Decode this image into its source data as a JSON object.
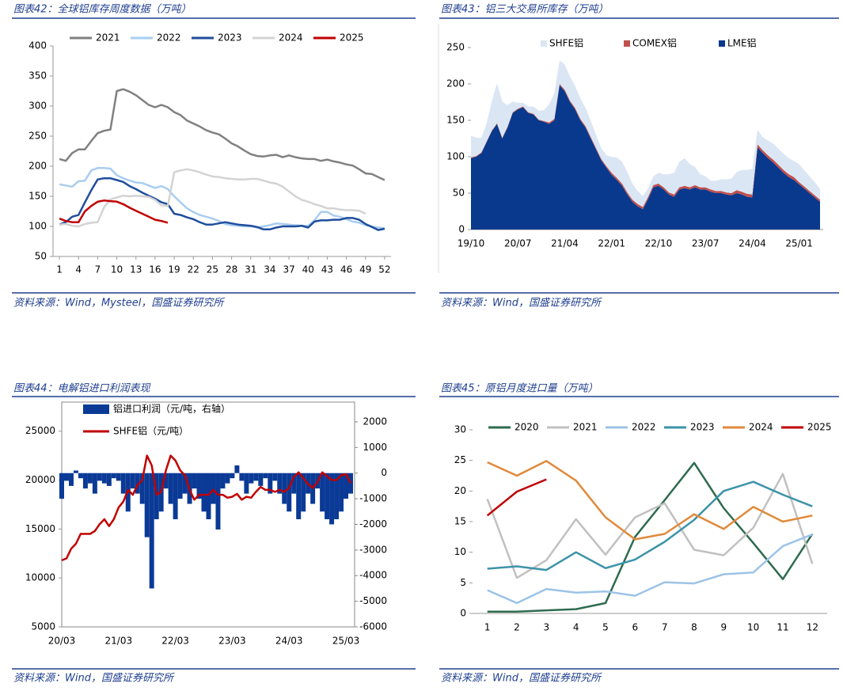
{
  "chart_data": [
    {
      "type": "line",
      "title": "图表42：全球铝库存周度数据（万吨）",
      "source": "资料来源：Wind，Mysteel，国盛证券研究所",
      "x": [
        1,
        2,
        3,
        4,
        5,
        6,
        7,
        8,
        9,
        10,
        11,
        12,
        13,
        14,
        15,
        16,
        17,
        18,
        19,
        20,
        21,
        22,
        23,
        24,
        25,
        26,
        27,
        28,
        29,
        30,
        31,
        32,
        33,
        34,
        35,
        36,
        37,
        38,
        39,
        40,
        41,
        42,
        43,
        44,
        45,
        46,
        47,
        48,
        49,
        50,
        51,
        52
      ],
      "xlim": [
        0,
        53
      ],
      "xticks": [
        1,
        4,
        7,
        10,
        13,
        16,
        19,
        22,
        25,
        28,
        31,
        34,
        37,
        40,
        43,
        46,
        49,
        52
      ],
      "ylim": [
        50,
        400
      ],
      "yticks": [
        50,
        100,
        150,
        200,
        250,
        300,
        350,
        400
      ],
      "legend": "top",
      "series": [
        {
          "name": "2021",
          "color": "#808080",
          "values": [
            212,
            209,
            222,
            228,
            228,
            242,
            255,
            259,
            261,
            325,
            328,
            324,
            318,
            310,
            302,
            298,
            302,
            298,
            290,
            285,
            276,
            271,
            266,
            260,
            256,
            253,
            246,
            238,
            233,
            226,
            220,
            217,
            216,
            218,
            219,
            215,
            218,
            215,
            213,
            212,
            212,
            209,
            211,
            208,
            206,
            203,
            201,
            195,
            188,
            187,
            182,
            177
          ]
        },
        {
          "name": "2022",
          "color": "#a9cdf0",
          "values": [
            170,
            168,
            166,
            175,
            176,
            193,
            197,
            197,
            196,
            185,
            180,
            176,
            173,
            172,
            168,
            164,
            167,
            162,
            150,
            140,
            130,
            124,
            119,
            116,
            113,
            109,
            104,
            102,
            101,
            100,
            100,
            98,
            100,
            102,
            105,
            104,
            103,
            102,
            101,
            101,
            110,
            124,
            124,
            118,
            116,
            112,
            108,
            106,
            102,
            100,
            98,
            97
          ]
        },
        {
          "name": "2023",
          "color": "#1f4e9c",
          "values": [
            103,
            107,
            116,
            119,
            140,
            160,
            178,
            180,
            180,
            177,
            174,
            167,
            162,
            156,
            151,
            146,
            140,
            137,
            121,
            119,
            115,
            112,
            107,
            103,
            103,
            105,
            107,
            105,
            103,
            102,
            101,
            99,
            95,
            95,
            98,
            100,
            100,
            100,
            101,
            98,
            108,
            110,
            110,
            111,
            111,
            114,
            114,
            111,
            104,
            99,
            94,
            96
          ]
        },
        {
          "name": "2024",
          "color": "#d3d3d3",
          "values": [
            103,
            104,
            101,
            100,
            104,
            106,
            107,
            132,
            145,
            148,
            151,
            150,
            151,
            150,
            149,
            144,
            135,
            134,
            190,
            193,
            195,
            193,
            190,
            186,
            183,
            182,
            180,
            179,
            178,
            178,
            179,
            179,
            176,
            173,
            171,
            166,
            158,
            150,
            144,
            141,
            137,
            134,
            130,
            130,
            128,
            127,
            127,
            126,
            121,
            null,
            null,
            null
          ]
        },
        {
          "name": "2025",
          "color": "#c00000",
          "values": [
            113,
            109,
            107,
            107,
            125,
            134,
            141,
            143,
            142,
            141,
            137,
            131,
            126,
            121,
            116,
            111,
            109,
            106,
            null,
            null,
            null,
            null,
            null,
            null,
            null,
            null,
            null,
            null,
            null,
            null,
            null,
            null,
            null,
            null,
            null,
            null,
            null,
            null,
            null,
            null,
            null,
            null,
            null,
            null,
            null,
            null,
            null,
            null,
            null,
            null,
            null,
            null
          ]
        }
      ]
    },
    {
      "type": "area",
      "title": "图表43：铝三大交易所库存（万吨）",
      "source": "资料来源：Wind，国盛证券研究所",
      "categories": [
        "19/10",
        null,
        null,
        null,
        null,
        null,
        null,
        null,
        null,
        "20/07",
        null,
        null,
        null,
        null,
        null,
        null,
        null,
        null,
        "21/04",
        null,
        null,
        null,
        null,
        null,
        null,
        null,
        null,
        "22/01",
        null,
        null,
        null,
        null,
        null,
        null,
        null,
        null,
        "22/10",
        null,
        null,
        null,
        null,
        null,
        null,
        null,
        null,
        "23/07",
        null,
        null,
        null,
        null,
        null,
        null,
        null,
        null,
        "24/04",
        null,
        null,
        null,
        null,
        null,
        null,
        null,
        null,
        "25/01",
        null,
        null,
        null,
        null
      ],
      "ylim": [
        0,
        250
      ],
      "yticks": [
        0,
        50,
        100,
        150,
        200,
        250
      ],
      "legend": "top",
      "stacked": true,
      "series": [
        {
          "name": "SHFE铝",
          "color": "#dbe6f4",
          "values": [
            30,
            25,
            20,
            25,
            40,
            55,
            50,
            30,
            15,
            8,
            5,
            8,
            10,
            12,
            15,
            25,
            35,
            32,
            35,
            33,
            30,
            28,
            25,
            22,
            18,
            15,
            15,
            22,
            28,
            30,
            28,
            22,
            18,
            15,
            12,
            12,
            15,
            18,
            25,
            30,
            35,
            38,
            32,
            25,
            18,
            15,
            12,
            14,
            16,
            18,
            20,
            25,
            30,
            33,
            35,
            20,
            18,
            20,
            22,
            22,
            22,
            22,
            22,
            25,
            22,
            20,
            18,
            15
          ]
        },
        {
          "name": "COMEX铝",
          "color": "#c0504d",
          "values": [
            1,
            1,
            1,
            1,
            1,
            1,
            1,
            1,
            1,
            1,
            1,
            1,
            1,
            1,
            1,
            2,
            2,
            2,
            2,
            2,
            2,
            2,
            2,
            2,
            2,
            2,
            2,
            3,
            3,
            3,
            3,
            3,
            3,
            3,
            3,
            3,
            3,
            3,
            3,
            3,
            3,
            3,
            3,
            3,
            3,
            3,
            3,
            3,
            3,
            3,
            3,
            4,
            4,
            4,
            4,
            4,
            4,
            4,
            4,
            4,
            4,
            4,
            4,
            3,
            3,
            3,
            3,
            3
          ]
        },
        {
          "name": "LME铝",
          "color": "#08398c",
          "values": [
            98,
            100,
            105,
            120,
            135,
            145,
            125,
            140,
            160,
            165,
            168,
            160,
            158,
            150,
            148,
            145,
            150,
            198,
            190,
            175,
            165,
            150,
            140,
            125,
            110,
            95,
            85,
            75,
            68,
            60,
            48,
            38,
            32,
            28,
            42,
            58,
            60,
            55,
            48,
            45,
            55,
            57,
            55,
            58,
            55,
            55,
            52,
            50,
            50,
            48,
            47,
            50,
            48,
            45,
            44,
            113,
            105,
            98,
            92,
            85,
            78,
            72,
            68,
            62,
            56,
            50,
            44,
            38
          ]
        }
      ]
    },
    {
      "type": "combo",
      "title": "图表44：电解铝进口利润表现",
      "source": "资料来源：Wind，国盛证券研究所",
      "categories": [
        "20/03",
        null,
        null,
        null,
        null,
        null,
        null,
        null,
        null,
        null,
        null,
        null,
        "21/03",
        null,
        null,
        null,
        null,
        null,
        null,
        null,
        null,
        null,
        null,
        null,
        "22/03",
        null,
        null,
        null,
        null,
        null,
        null,
        null,
        null,
        null,
        null,
        null,
        "23/03",
        null,
        null,
        null,
        null,
        null,
        null,
        null,
        null,
        null,
        null,
        null,
        "24/03",
        null,
        null,
        null,
        null,
        null,
        null,
        null,
        null,
        null,
        null,
        null,
        "25/03",
        null
      ],
      "ylim": [
        5000,
        27000
      ],
      "yticks": [
        5000,
        10000,
        15000,
        20000,
        25000
      ],
      "y2lim": [
        -6000,
        2400
      ],
      "y2ticks": [
        -6000,
        -5000,
        -4000,
        -3000,
        -2000,
        -1000,
        0,
        1000,
        2000
      ],
      "legend": "top-left",
      "series": [
        {
          "name": "铝进口利润（元/吨，右轴）",
          "color": "#0a3a96",
          "axis": "y2",
          "values": [
            -1000,
            -300,
            -500,
            100,
            -200,
            -600,
            -400,
            -800,
            -300,
            -400,
            -500,
            -200,
            -300,
            -800,
            -1500,
            -600,
            -800,
            -1200,
            -2500,
            -4500,
            -1800,
            -1500,
            -600,
            -1200,
            -1800,
            -1000,
            -800,
            -1200,
            -600,
            -1000,
            -1500,
            -1800,
            -1200,
            -2200,
            -600,
            -400,
            -200,
            300,
            -300,
            -800,
            -400,
            -300,
            -500,
            -200,
            -800,
            -300,
            -800,
            -1200,
            -1500,
            -800,
            -1800,
            -1500,
            -800,
            -1200,
            -600,
            -1500,
            -1800,
            -2000,
            -1800,
            -1500,
            -1000,
            -800
          ]
        },
        {
          "name": "SHFE铝（元/吨）",
          "color": "#c00000",
          "values": [
            11800,
            12000,
            13000,
            13500,
            14500,
            14500,
            14500,
            14800,
            15500,
            16000,
            15300,
            16000,
            17200,
            17800,
            19000,
            18500,
            19500,
            20000,
            22500,
            21500,
            18500,
            18800,
            21000,
            22500,
            22000,
            21000,
            20500,
            19000,
            18000,
            18500,
            18500,
            18500,
            19000,
            18500,
            18500,
            18200,
            18300,
            18600,
            18000,
            18300,
            18200,
            18800,
            19300,
            19000,
            19000,
            18800,
            19000,
            18800,
            19200,
            20300,
            20800,
            20200,
            19600,
            19200,
            19800,
            20800,
            20400,
            20000,
            20000,
            20500,
            20600,
            19700
          ]
        }
      ]
    },
    {
      "type": "line",
      "title": "图表45：原铝月度进口量（万吨）",
      "source": "资料来源：Wind，国盛证券研究所",
      "categories": [
        1,
        2,
        3,
        4,
        5,
        6,
        7,
        8,
        9,
        10,
        11,
        12
      ],
      "ylim": [
        0,
        30
      ],
      "yticks": [
        0,
        5,
        10,
        15,
        20,
        25,
        30
      ],
      "legend": "top",
      "series": [
        {
          "name": "2020",
          "color": "#2e6b4f",
          "values": [
            0.3,
            0.3,
            0.5,
            0.7,
            1.7,
            12.5,
            18.5,
            24.6,
            17.2,
            11.5,
            5.6,
            13
          ]
        },
        {
          "name": "2021",
          "color": "#c0c0c0",
          "values": [
            18.7,
            5.8,
            8.7,
            15.4,
            9.6,
            15.7,
            18,
            10.4,
            9.5,
            14,
            22.8,
            8.1
          ]
        },
        {
          "name": "2022",
          "color": "#9dc3e6",
          "values": [
            3.8,
            1.7,
            4,
            3.4,
            3.6,
            2.9,
            5.1,
            4.9,
            6.4,
            6.7,
            11,
            12.9
          ]
        },
        {
          "name": "2023",
          "color": "#3c93a8",
          "values": [
            7.3,
            7.7,
            7.1,
            10,
            7.4,
            8.8,
            11.7,
            15.3,
            20,
            21.5,
            19.4,
            17.5
          ]
        },
        {
          "name": "2024",
          "color": "#e08a3c",
          "values": [
            24.7,
            22.5,
            24.9,
            21.7,
            15.7,
            12.1,
            13,
            16.2,
            13.8,
            17.4,
            15,
            16
          ]
        },
        {
          "name": "2025",
          "color": "#c00000",
          "values": [
            16,
            19.9,
            21.9,
            null,
            null,
            null,
            null,
            null,
            null,
            null,
            null,
            null
          ]
        }
      ]
    }
  ]
}
